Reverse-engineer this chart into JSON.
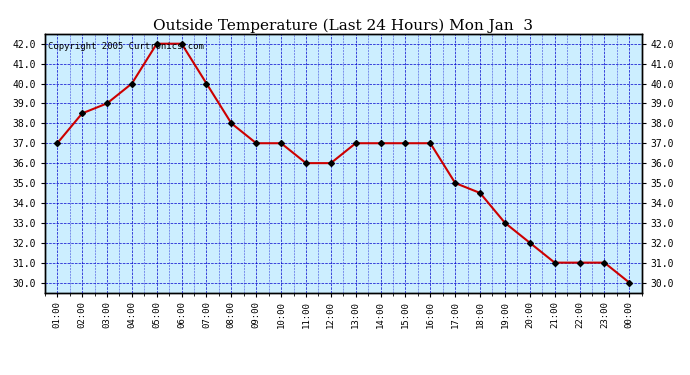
{
  "title": "Outside Temperature (Last 24 Hours) Mon Jan  3",
  "copyright_text": "Copyright 2005 Curtronics.com",
  "x_labels": [
    "01:00",
    "02:00",
    "03:00",
    "04:00",
    "05:00",
    "06:00",
    "07:00",
    "08:00",
    "09:00",
    "10:00",
    "11:00",
    "12:00",
    "13:00",
    "14:00",
    "15:00",
    "16:00",
    "17:00",
    "18:00",
    "19:00",
    "20:00",
    "21:00",
    "22:00",
    "23:00",
    "00:00"
  ],
  "y_values": [
    37.0,
    38.5,
    39.0,
    40.0,
    42.0,
    42.0,
    40.0,
    38.0,
    37.0,
    37.0,
    36.0,
    36.0,
    37.0,
    37.0,
    37.0,
    37.0,
    35.0,
    34.5,
    33.0,
    32.0,
    31.0,
    31.0,
    31.0,
    30.0
  ],
  "ylim": [
    29.5,
    42.5
  ],
  "yticks": [
    30.0,
    31.0,
    32.0,
    33.0,
    34.0,
    35.0,
    36.0,
    37.0,
    38.0,
    39.0,
    40.0,
    41.0,
    42.0
  ],
  "line_color": "#cc0000",
  "marker_color": "#000000",
  "plot_bg_color": "#cceeff",
  "outer_bg_color": "#ffffff",
  "grid_color": "#0000cc",
  "title_fontsize": 11,
  "copyright_fontsize": 6.5
}
